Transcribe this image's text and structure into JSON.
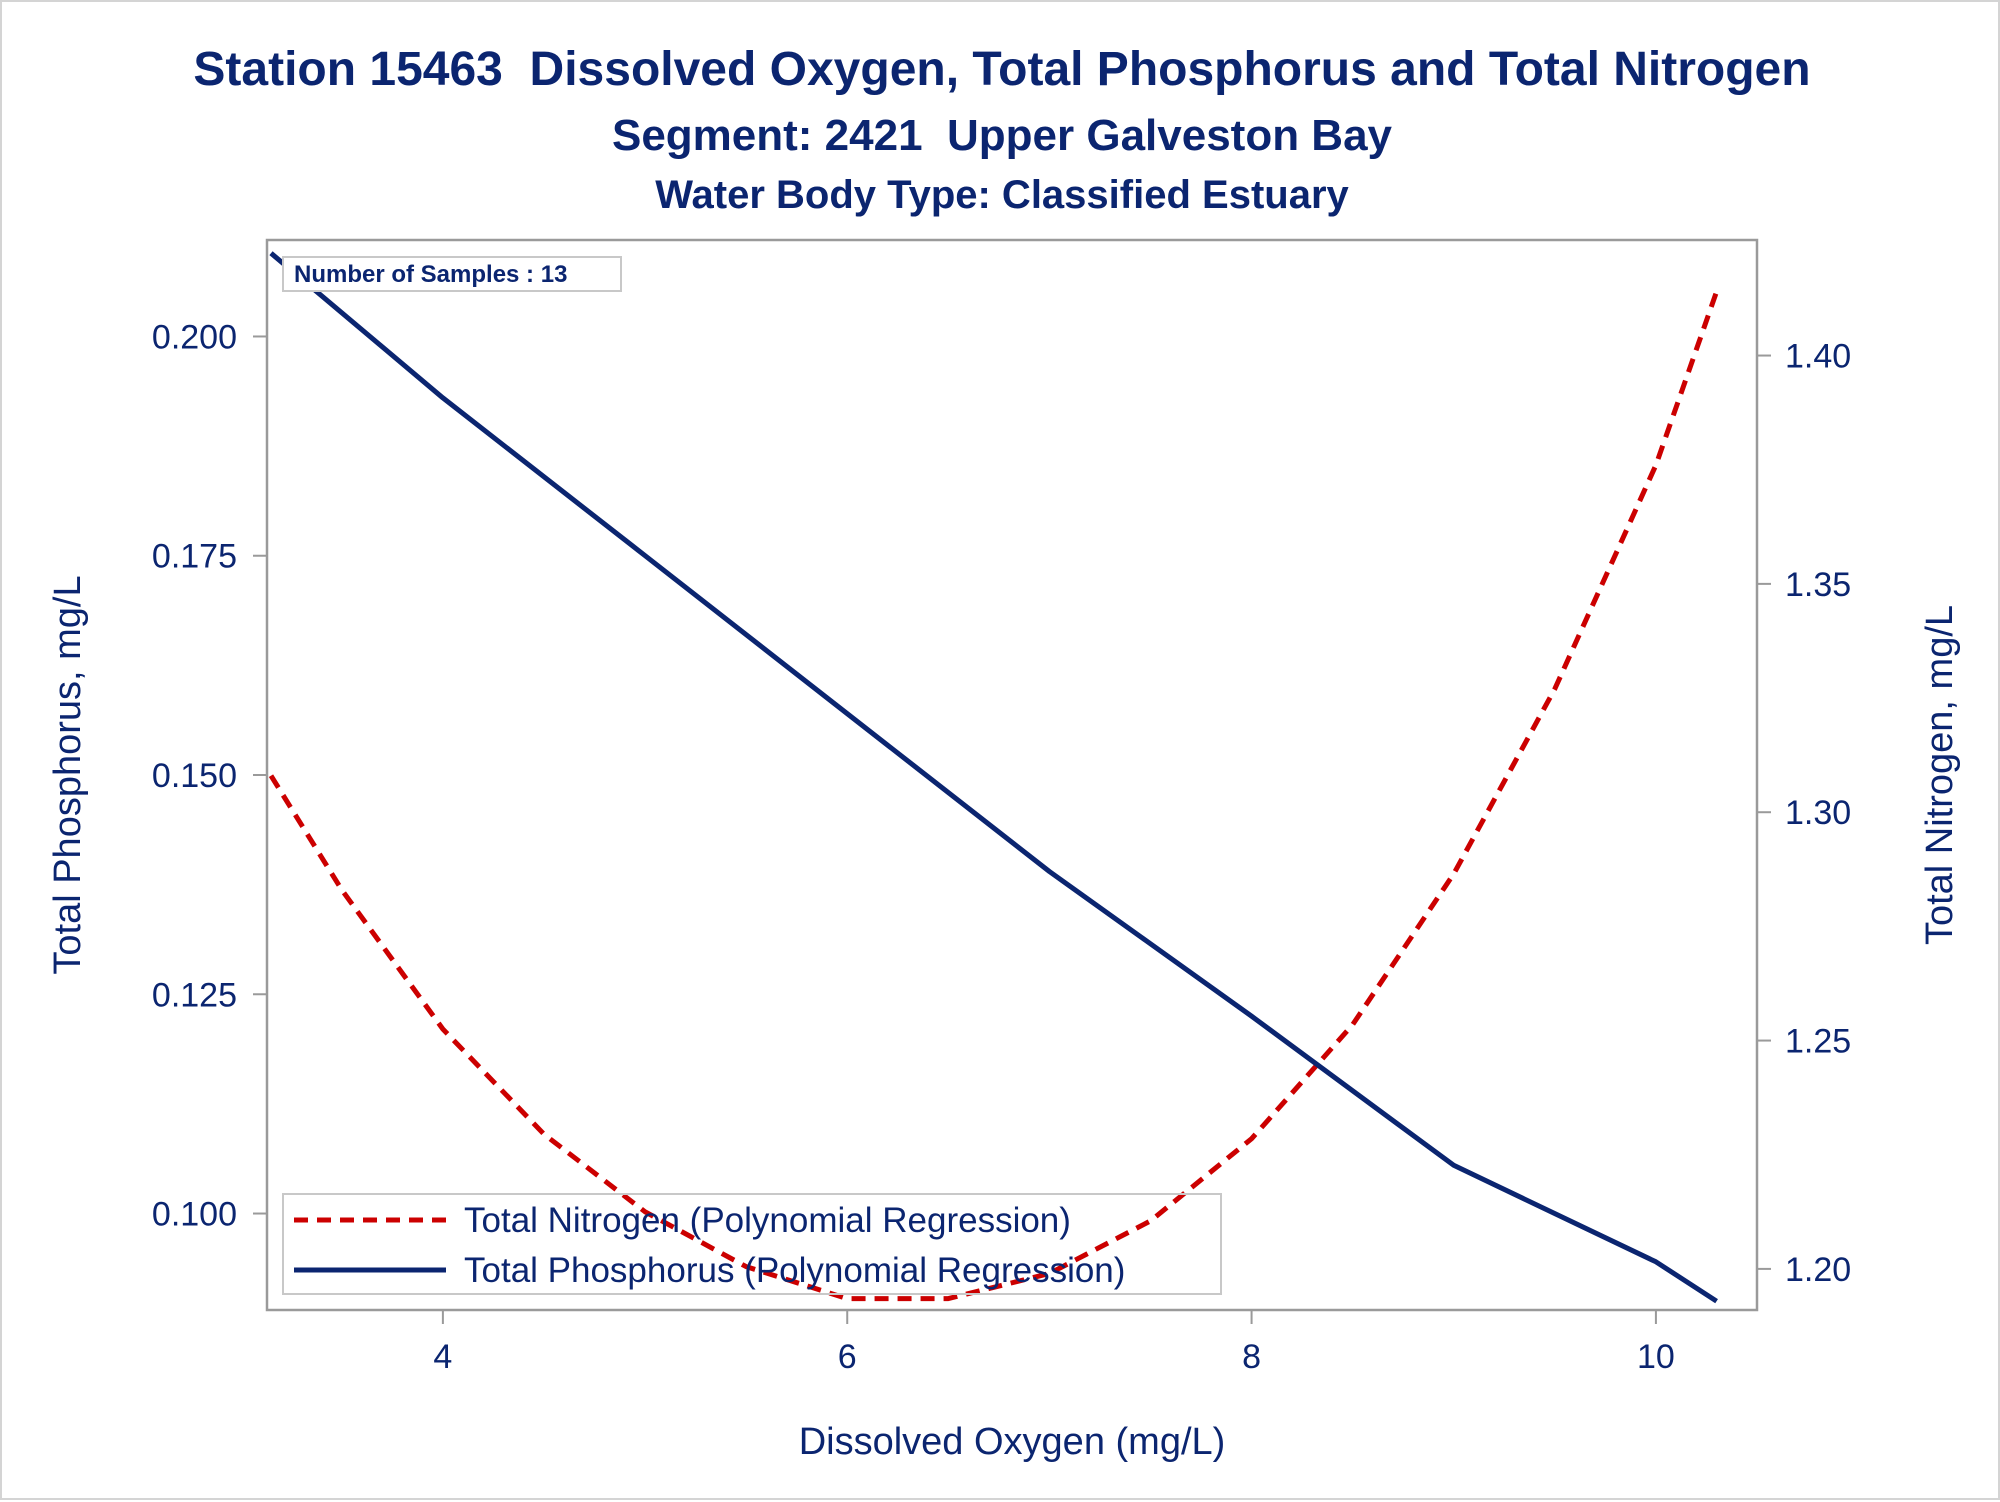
{
  "chart_data": {
    "type": "line",
    "title": "Station 15463  Dissolved Oxygen, Total Phosphorus and Total Nitrogen",
    "subtitle": "Segment: 2421  Upper Galveston Bay",
    "subtitle2": "Water Body Type: Classified Estuary",
    "xlabel": "Dissolved Oxygen (mg/L)",
    "ylabel_left": "Total Phosphorus, mg/L",
    "ylabel_right": "Total Nitrogen, mg/L",
    "xlim": [
      3.13,
      10.5
    ],
    "ylim_left": [
      0.089,
      0.211
    ],
    "ylim_right": [
      1.191,
      1.4253
    ],
    "x_ticks": [
      4,
      6,
      8,
      10
    ],
    "x_tick_labels": [
      "4",
      "6",
      "8",
      "10"
    ],
    "y_left_ticks": [
      0.1,
      0.125,
      0.15,
      0.175,
      0.2
    ],
    "y_left_tick_labels": [
      "0.100",
      "0.125",
      "0.150",
      "0.175",
      "0.200"
    ],
    "y_right_ticks": [
      1.2,
      1.25,
      1.3,
      1.35,
      1.4
    ],
    "y_right_tick_labels": [
      "1.20",
      "1.25",
      "1.30",
      "1.35",
      "1.40"
    ],
    "grid": false,
    "inset_text": "Number of Samples : 13",
    "legend_position": "bottom-left",
    "legend": [
      {
        "label": "Total Nitrogen (Polynomial Regression)",
        "series": "nitrogen"
      },
      {
        "label": "Total Phosphorus (Polynomial Regression)",
        "series": "phosphorus"
      }
    ],
    "series": [
      {
        "name": "Total Nitrogen (Polynomial Regression)",
        "key": "nitrogen",
        "axis": "right",
        "color": "#cc0000",
        "style": "dashed",
        "x": [
          3.15,
          3.5,
          4.0,
          4.5,
          5.0,
          5.5,
          6.0,
          6.5,
          7.0,
          7.5,
          8.0,
          8.5,
          9.0,
          9.5,
          10.0,
          10.3
        ],
        "y": [
          1.308,
          1.283,
          1.2525,
          1.2295,
          1.2125,
          1.2005,
          1.1935,
          1.1935,
          1.199,
          1.2105,
          1.2285,
          1.2535,
          1.2865,
          1.327,
          1.376,
          1.414
        ]
      },
      {
        "name": "Total Phosphorus (Polynomial Regression)",
        "key": "phosphorus",
        "axis": "left",
        "color": "#0b2570",
        "style": "solid",
        "x": [
          3.15,
          4.0,
          5.0,
          6.0,
          7.0,
          8.0,
          9.0,
          10.0,
          10.3
        ],
        "y": [
          0.2095,
          0.193,
          0.175,
          0.157,
          0.139,
          0.1225,
          0.1055,
          0.0945,
          0.09
        ]
      }
    ]
  }
}
